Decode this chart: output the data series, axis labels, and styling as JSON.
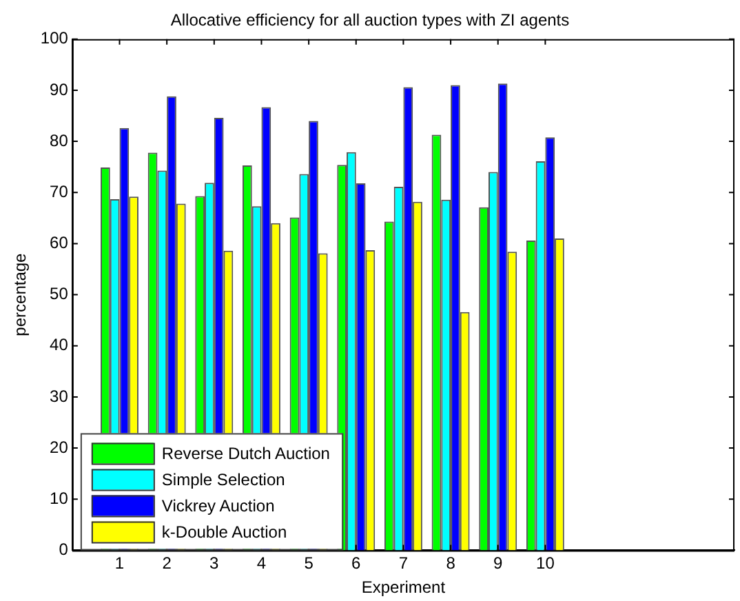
{
  "chart_data": {
    "type": "bar",
    "title": "Allocative efficiency for all auction types with ZI agents",
    "xlabel": "Experiment",
    "ylabel": "percentage",
    "x": [
      1,
      2,
      3,
      4,
      5,
      6,
      7,
      8,
      9,
      10
    ],
    "series": [
      {
        "name": "Reverse Dutch Auction",
        "color": "#00ff00",
        "values": [
          74.9,
          77.8,
          69.3,
          75.3,
          65.1,
          75.4,
          64.3,
          81.3,
          67.1,
          60.6
        ]
      },
      {
        "name": "Simple Selection",
        "color": "#00ffff",
        "values": [
          68.7,
          74.3,
          71.9,
          67.3,
          73.6,
          77.9,
          71.1,
          68.6,
          74.0,
          76.1
        ]
      },
      {
        "name": "Vickrey Auction",
        "color": "#0000ff",
        "values": [
          82.6,
          88.8,
          84.6,
          86.7,
          84.0,
          71.8,
          90.6,
          91.0,
          91.3,
          80.8
        ]
      },
      {
        "name": "k-Double Auction",
        "color": "#ffff00",
        "values": [
          69.2,
          67.8,
          58.6,
          64.0,
          58.1,
          58.7,
          68.2,
          46.6,
          58.4,
          61.0
        ]
      }
    ],
    "xlim": [
      0,
      14
    ],
    "xticks": [
      1,
      2,
      3,
      4,
      5,
      6,
      7,
      8,
      9,
      10
    ],
    "ylim": [
      0,
      100
    ],
    "yticks": [
      0,
      10,
      20,
      30,
      40,
      50,
      60,
      70,
      80,
      90,
      100
    ],
    "grid": false,
    "legend": "bottom left"
  }
}
